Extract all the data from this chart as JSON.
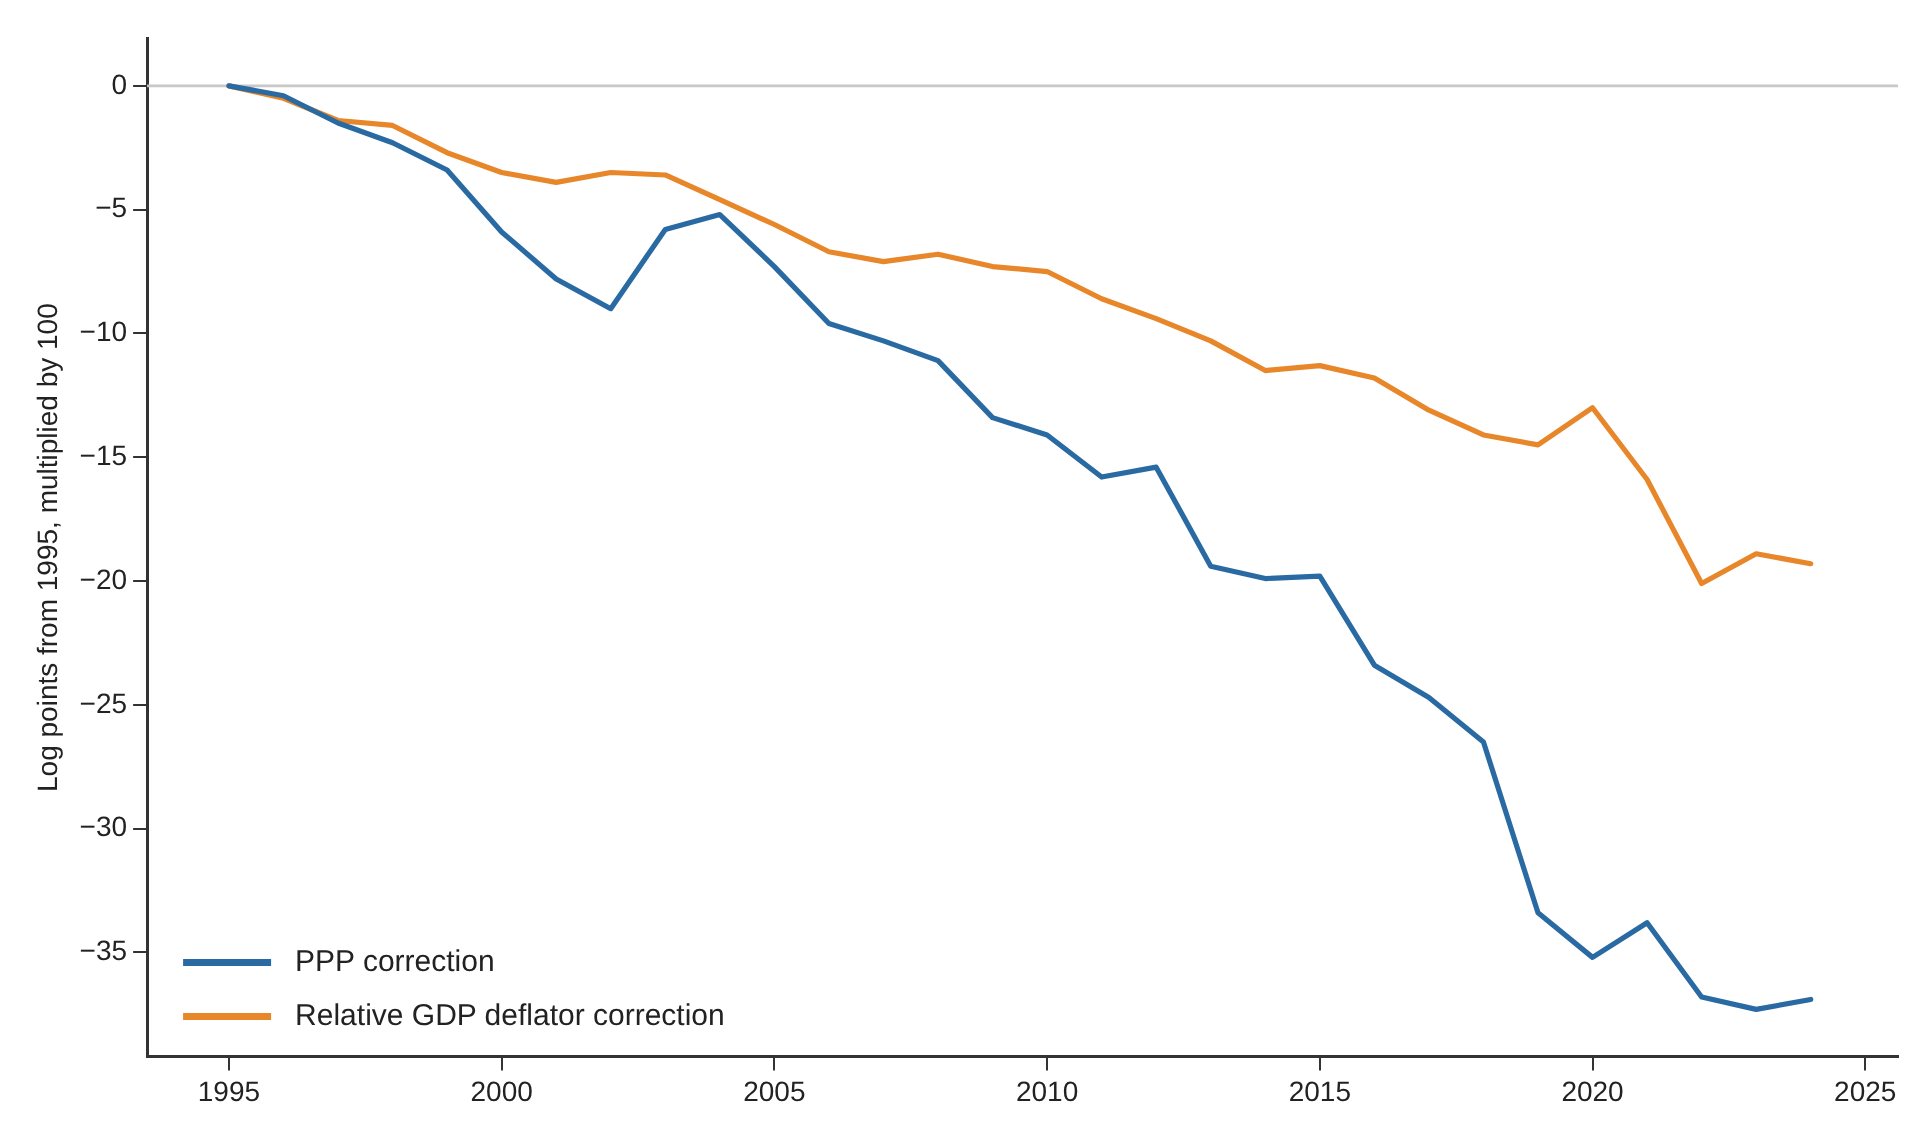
{
  "chart_data": {
    "type": "line",
    "ylabel": "Log points from 1995, multiplied by 100",
    "x": [
      1995,
      1996,
      1997,
      1998,
      1999,
      2000,
      2001,
      2002,
      2003,
      2004,
      2005,
      2006,
      2007,
      2008,
      2009,
      2010,
      2011,
      2012,
      2013,
      2014,
      2015,
      2016,
      2017,
      2018,
      2019,
      2020,
      2021,
      2022,
      2023,
      2024
    ],
    "series": [
      {
        "name": "PPP correction",
        "color": "#2a6aa3",
        "values": [
          0,
          -0.4,
          -1.5,
          -2.3,
          -3.4,
          -5.9,
          -7.8,
          -9.0,
          -5.8,
          -5.2,
          -7.3,
          -9.6,
          -10.3,
          -11.1,
          -13.4,
          -14.1,
          -15.8,
          -15.4,
          -19.4,
          -19.9,
          -19.8,
          -23.4,
          -24.7,
          -26.5,
          -33.4,
          -35.2,
          -33.8,
          -36.8,
          -37.3,
          -36.9
        ]
      },
      {
        "name": "Relative GDP deflator correction",
        "color": "#e8862a",
        "values": [
          0,
          -0.5,
          -1.4,
          -1.6,
          -2.7,
          -3.5,
          -3.9,
          -3.5,
          -3.6,
          -4.6,
          -5.6,
          -6.7,
          -7.1,
          -6.8,
          -7.3,
          -7.5,
          -8.6,
          -9.4,
          -10.3,
          -11.5,
          -11.3,
          -11.8,
          -13.1,
          -14.1,
          -14.5,
          -13.0,
          -15.9,
          -20.1,
          -18.9,
          -19.3
        ]
      }
    ],
    "xlim": [
      1993.5,
      2025.6
    ],
    "xticks": [
      1995,
      2000,
      2005,
      2010,
      2015,
      2020,
      2025
    ],
    "ylim": [
      -39.2,
      1.9
    ],
    "yticks": [
      -35,
      -30,
      -25,
      -20,
      -15,
      -10,
      -5,
      0
    ],
    "ref_lines": [
      {
        "axis": "y",
        "value": 0,
        "color": "#c8c8c8"
      }
    ],
    "grid": false,
    "legend": "bottom left",
    "marker": "none",
    "line_style": "solid"
  }
}
